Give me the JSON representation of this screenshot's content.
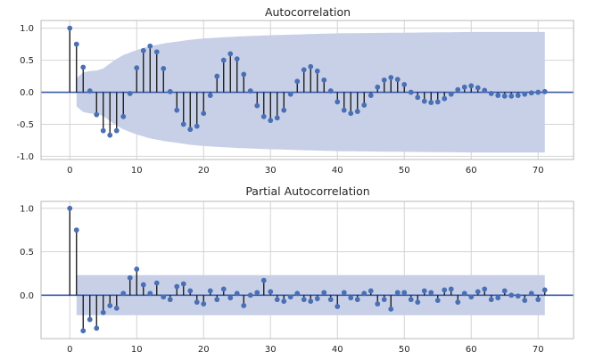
{
  "chart_data": [
    {
      "type": "stem",
      "title": "Autocorrelation",
      "xlim": [
        -4.3,
        75.3
      ],
      "ylim": [
        -1.05,
        1.12
      ],
      "xticks": [
        0,
        10,
        20,
        30,
        40,
        50,
        60,
        70
      ],
      "yticks": [
        1.0,
        0.5,
        0.0,
        -0.5,
        -1.0
      ],
      "ytick_labels": [
        "1.0",
        "0.5",
        "0.0",
        "-0.5",
        "-1.0"
      ],
      "grid": true,
      "confidence_band": {
        "lags": [
          1,
          2,
          3,
          4,
          5,
          6,
          7,
          8,
          10,
          12,
          14,
          16,
          18,
          20,
          25,
          30,
          40,
          50,
          60,
          71
        ],
        "upper": [
          0.22,
          0.31,
          0.33,
          0.34,
          0.37,
          0.45,
          0.52,
          0.58,
          0.66,
          0.72,
          0.76,
          0.79,
          0.82,
          0.84,
          0.87,
          0.89,
          0.92,
          0.93,
          0.94,
          0.94
        ]
      },
      "x": [
        0,
        1,
        2,
        3,
        4,
        5,
        6,
        7,
        8,
        9,
        10,
        11,
        12,
        13,
        14,
        15,
        16,
        17,
        18,
        19,
        20,
        21,
        22,
        23,
        24,
        25,
        26,
        27,
        28,
        29,
        30,
        31,
        32,
        33,
        34,
        35,
        36,
        37,
        38,
        39,
        40,
        41,
        42,
        43,
        44,
        45,
        46,
        47,
        48,
        49,
        50,
        51,
        52,
        53,
        54,
        55,
        56,
        57,
        58,
        59,
        60,
        61,
        62,
        63,
        64,
        65,
        66,
        67,
        68,
        69,
        70,
        71
      ],
      "values": [
        1.0,
        0.75,
        0.39,
        0.02,
        -0.35,
        -0.6,
        -0.67,
        -0.6,
        -0.38,
        -0.02,
        0.38,
        0.65,
        0.72,
        0.63,
        0.37,
        0.01,
        -0.28,
        -0.5,
        -0.58,
        -0.53,
        -0.33,
        -0.05,
        0.25,
        0.5,
        0.6,
        0.52,
        0.28,
        0.02,
        -0.21,
        -0.38,
        -0.44,
        -0.4,
        -0.28,
        -0.03,
        0.17,
        0.35,
        0.4,
        0.33,
        0.19,
        0.02,
        -0.15,
        -0.28,
        -0.33,
        -0.3,
        -0.2,
        -0.05,
        0.08,
        0.19,
        0.23,
        0.2,
        0.12,
        0.0,
        -0.08,
        -0.14,
        -0.16,
        -0.15,
        -0.1,
        -0.03,
        0.04,
        0.08,
        0.1,
        0.07,
        0.03,
        -0.02,
        -0.05,
        -0.06,
        -0.06,
        -0.05,
        -0.03,
        -0.01,
        0.0,
        0.01
      ]
    },
    {
      "type": "stem",
      "title": "Partial Autocorrelation",
      "xlim": [
        -4.3,
        75.3
      ],
      "ylim": [
        -0.5,
        1.08
      ],
      "xticks": [
        0,
        10,
        20,
        30,
        40,
        50,
        60,
        70
      ],
      "yticks": [
        1.0,
        0.5,
        0.0
      ],
      "ytick_labels": [
        "1.0",
        "0.5",
        "0.0"
      ],
      "grid": true,
      "confidence_band": {
        "lags": [
          1,
          71
        ],
        "upper": [
          0.23,
          0.23
        ]
      },
      "x": [
        0,
        1,
        2,
        3,
        4,
        5,
        6,
        7,
        8,
        9,
        10,
        11,
        12,
        13,
        14,
        15,
        16,
        17,
        18,
        19,
        20,
        21,
        22,
        23,
        24,
        25,
        26,
        27,
        28,
        29,
        30,
        31,
        32,
        33,
        34,
        35,
        36,
        37,
        38,
        39,
        40,
        41,
        42,
        43,
        44,
        45,
        46,
        47,
        48,
        49,
        50,
        51,
        52,
        53,
        54,
        55,
        56,
        57,
        58,
        59,
        60,
        61,
        62,
        63,
        64,
        65,
        66,
        67,
        68,
        69,
        70,
        71
      ],
      "values": [
        1.0,
        0.75,
        -0.41,
        -0.28,
        -0.38,
        -0.2,
        -0.12,
        -0.15,
        0.02,
        0.2,
        0.3,
        0.12,
        0.02,
        0.14,
        -0.02,
        -0.05,
        0.1,
        0.13,
        0.05,
        -0.08,
        -0.1,
        0.05,
        -0.05,
        0.07,
        -0.03,
        0.02,
        -0.12,
        0.0,
        0.03,
        0.17,
        0.04,
        -0.05,
        -0.07,
        -0.02,
        0.02,
        -0.05,
        -0.07,
        -0.04,
        0.03,
        -0.05,
        -0.13,
        0.03,
        -0.03,
        -0.05,
        0.02,
        0.05,
        -0.1,
        -0.05,
        -0.16,
        0.03,
        0.03,
        -0.05,
        -0.08,
        0.05,
        0.03,
        -0.06,
        0.06,
        0.07,
        -0.08,
        0.02,
        -0.02,
        0.04,
        0.07,
        -0.05,
        -0.03,
        0.05,
        0.0,
        -0.01,
        -0.06,
        0.02,
        -0.05,
        0.06
      ]
    }
  ]
}
